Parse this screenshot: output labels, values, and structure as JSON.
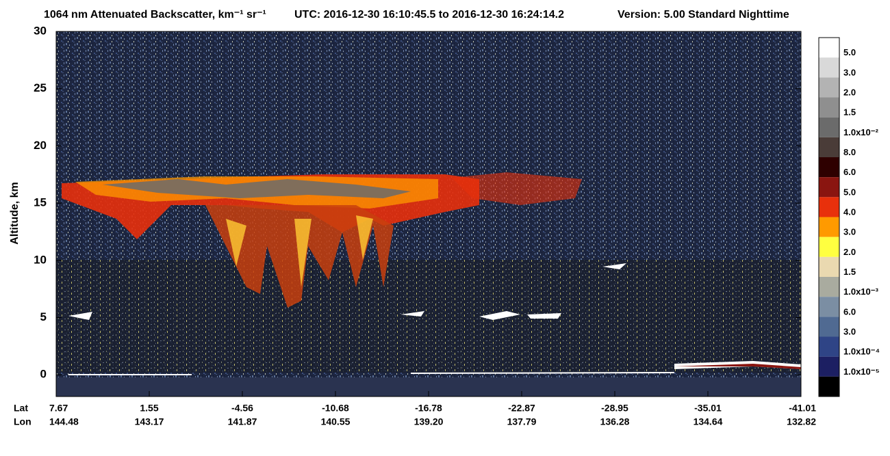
{
  "chart_data": {
    "type": "curtain",
    "title": "1064 nm Attenuated Backscatter, km⁻¹ sr⁻¹",
    "time_range": "UTC:  2016-12-30 16:10:45.5  to  2016-12-30 16:24:14.2",
    "version": "Version: 5.00  Standard  Nighttime",
    "y_label": "Altitude, km",
    "ylim": [
      -1.9,
      30
    ],
    "yticks": [
      0,
      5,
      10,
      15,
      20,
      25,
      30
    ],
    "x_row_labels": [
      "Lat",
      "Lon"
    ],
    "lat": [
      "7.67",
      "1.55",
      "-4.56",
      "-10.68",
      "-16.78",
      "-22.87",
      "-28.95",
      "-35.01",
      "-41.01"
    ],
    "lon": [
      "144.48",
      "143.17",
      "141.87",
      "140.55",
      "139.20",
      "137.79",
      "136.28",
      "134.64",
      "132.82"
    ],
    "colorbar": {
      "labels": [
        "5.0",
        "3.0",
        "2.0",
        "1.5",
        "1.0x10⁻²",
        "8.0",
        "6.0",
        "5.0",
        "4.0",
        "3.0",
        "2.0",
        "1.5",
        "1.0x10⁻³",
        "6.0",
        "3.0",
        "1.0x10⁻⁴",
        "1.0x10⁻⁵"
      ],
      "colors": [
        "#ffffff",
        "#d9d9d9",
        "#b3b3b3",
        "#8f8f8f",
        "#6b6b6b",
        "#4a3c38",
        "#2e0000",
        "#8a1510",
        "#e8300c",
        "#ff9a00",
        "#ffff40",
        "#ead9b0",
        "#a9ab9f",
        "#7b8ea3",
        "#506a92",
        "#2f4486",
        "#1c1f62",
        "#000000"
      ]
    }
  }
}
